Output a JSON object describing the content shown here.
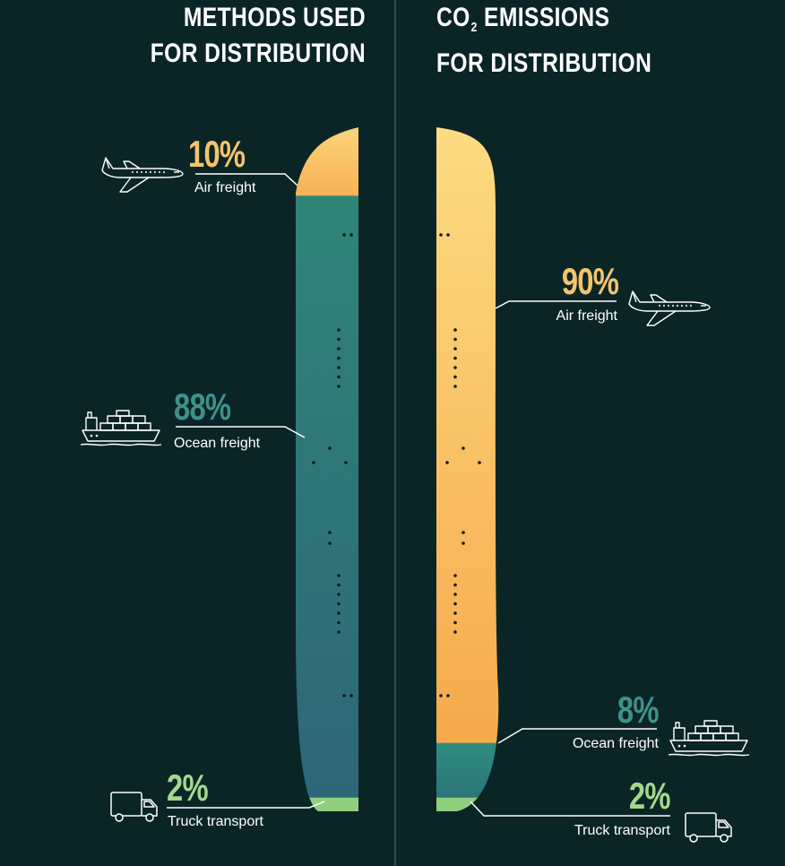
{
  "chart_data": [
    {
      "type": "bar",
      "title_lines": [
        "METHODS USED",
        "FOR DISTRIBUTION"
      ],
      "categories": [
        "Air freight",
        "Ocean freight",
        "Truck transport"
      ],
      "values": [
        10,
        88,
        2
      ],
      "labels": [
        "10%",
        "88%",
        "2%"
      ]
    },
    {
      "type": "bar",
      "title_prefix": "CO",
      "title_subscript": "2",
      "title_suffix": " EMISSIONS",
      "title_line2": "FOR DISTRIBUTION",
      "categories": [
        "Air freight",
        "Ocean freight",
        "Truck transport"
      ],
      "values": [
        90,
        8,
        2
      ],
      "labels": [
        "90%",
        "8%",
        "2%"
      ]
    }
  ],
  "icons": {
    "air": "airplane-icon",
    "ocean": "cargo-ship-icon",
    "truck": "truck-icon"
  },
  "colors": {
    "background": "#0b2527",
    "air": "#f7b85a",
    "ocean": "#2f7b7a",
    "truck": "#8fcf7e",
    "label_air": "#f4c46a",
    "label_ocean": "#3e918c",
    "label_truck": "#a3d88c"
  }
}
